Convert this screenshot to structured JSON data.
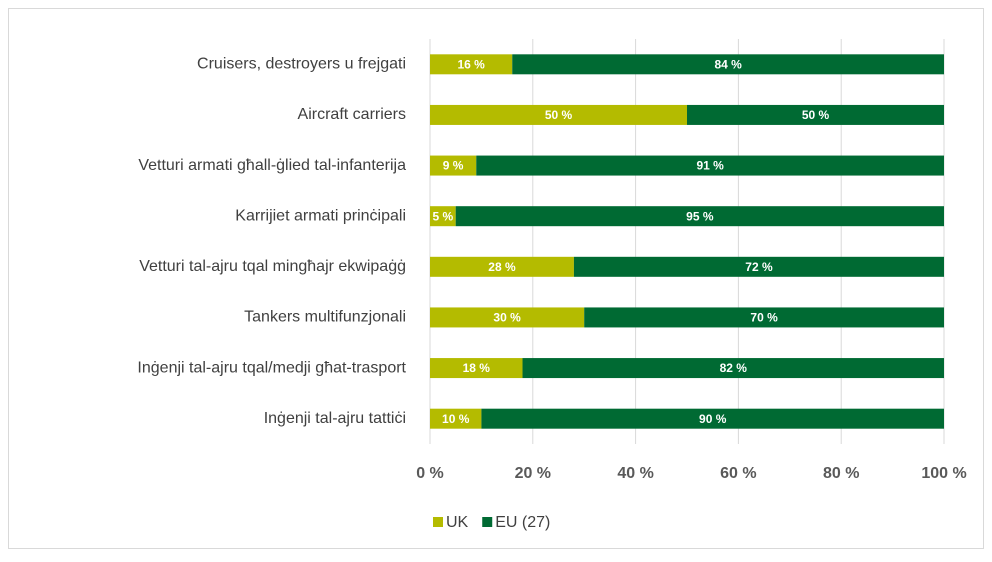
{
  "chart_data": {
    "type": "bar",
    "orientation": "horizontal",
    "stacked": true,
    "categories": [
      "Cruisers, destroyers u frejgati",
      "Aircraft carriers",
      "Vetturi armati għall-ġlied tal-infanterija",
      "Karrijiet armati prinċipali",
      "Vetturi tal-ajru tqal mingħajr ekwipaġġ",
      "Tankers multifunzjonali",
      "Inġenji tal-ajru tqal/medji għat-trasport",
      "Inġenji tal-ajru tattiċi"
    ],
    "series": [
      {
        "name": "UK",
        "color": "#b4bb00",
        "values": [
          16,
          50,
          9,
          5,
          28,
          30,
          18,
          10
        ],
        "value_labels": [
          "16 %",
          "50 %",
          "9 %",
          "5 %",
          "28 %",
          "30 %",
          "18 %",
          "10 %"
        ]
      },
      {
        "name": "EU (27)",
        "color": "#006a33",
        "values": [
          84,
          50,
          91,
          95,
          72,
          70,
          82,
          90
        ],
        "value_labels": [
          "84 %",
          "50 %",
          "91 %",
          "95 %",
          "72 %",
          "70 %",
          "82 %",
          "90 %"
        ]
      }
    ],
    "xlim": [
      0,
      100
    ],
    "xticks": [
      {
        "value": 0,
        "label": "0 %"
      },
      {
        "value": 20,
        "label": "20 %"
      },
      {
        "value": 40,
        "label": "40 %"
      },
      {
        "value": 60,
        "label": "60 %"
      },
      {
        "value": 80,
        "label": "80 %"
      },
      {
        "value": 100,
        "label": "100 %"
      }
    ],
    "grid": true,
    "legend": "bottom"
  }
}
